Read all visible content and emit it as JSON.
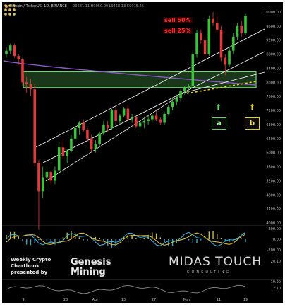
{
  "header": {
    "symbol": "Bitcoin / TetherUS",
    "interval": "1D",
    "exchange": "BINANCE",
    "ohlc_text": "O9681.11  H9950.00  L9468.13  C9915.26"
  },
  "colors": {
    "background": "#000000",
    "up_candle": "#39c439",
    "down_candle": "#e23a3a",
    "channel_lines": "#ffffff",
    "moving_average": "#8a57c6",
    "support_zone": "#6fd86f",
    "projection": "#e6d21a",
    "sell_label": "#ff2a2a"
  },
  "annotations": {
    "sell_1": "sell 50%",
    "sell_2": "sell 25%",
    "label_a": "a",
    "label_b": "b",
    "arrow_a_icon": "arrow-up-green",
    "arrow_b_icon": "arrow-up-yellow"
  },
  "branding": {
    "promo_line1": "Weekly Crypto",
    "promo_line2": "Chartbook",
    "promo_line3": "presented by",
    "genesis_line1": "Genesis",
    "genesis_line2": "Mining",
    "midas": "MIDAS TOUCH",
    "consulting": "CONSULTING"
  },
  "chart_data": {
    "type": "candlestick",
    "price_axis": {
      "range": [
        4000,
        10000
      ],
      "ticks": [
        "10000.00",
        "9600.00",
        "9200.00",
        "8800.00",
        "8400.00",
        "8000.00",
        "7600.00",
        "7200.00",
        "6800.00",
        "6400.00",
        "6000.00",
        "5600.00",
        "5200.00",
        "4800.00",
        "4400.00",
        "4000.00"
      ]
    },
    "oscillator_axis": {
      "ticks": [
        "200.00",
        "0.00",
        "-200.00"
      ]
    },
    "lower_axis": {
      "ticks": [
        "20.10",
        "19.90",
        "12.10"
      ]
    },
    "x_ticks": [
      "9",
      "23",
      "Apr",
      "13",
      "27",
      "May",
      "11",
      "19"
    ],
    "support_zone": {
      "low": 7850,
      "high": 8300
    },
    "candles": [
      [
        8800,
        9000,
        8700,
        8900
      ],
      [
        8900,
        9100,
        8800,
        9050
      ],
      [
        9050,
        9100,
        8700,
        8750
      ],
      [
        8750,
        8800,
        8500,
        8650
      ],
      [
        8650,
        8700,
        7900,
        8000
      ],
      [
        8000,
        8150,
        7700,
        7950
      ],
      [
        7950,
        8100,
        7600,
        7800
      ],
      [
        7800,
        7950,
        5600,
        5700
      ],
      [
        5700,
        5800,
        3800,
        4900
      ],
      [
        4900,
        5600,
        4700,
        5300
      ],
      [
        5300,
        5600,
        5000,
        5450
      ],
      [
        5450,
        5500,
        5100,
        5200
      ],
      [
        5200,
        5600,
        5100,
        5500
      ],
      [
        5500,
        6300,
        5400,
        6150
      ],
      [
        6150,
        6400,
        5800,
        5900
      ],
      [
        5900,
        6100,
        5700,
        6050
      ],
      [
        6050,
        6500,
        6000,
        6400
      ],
      [
        6400,
        6800,
        6300,
        6700
      ],
      [
        6700,
        6900,
        6500,
        6850
      ],
      [
        6850,
        6950,
        6600,
        6650
      ],
      [
        6650,
        6700,
        6300,
        6400
      ],
      [
        6400,
        6500,
        6000,
        6100
      ],
      [
        6100,
        6350,
        6000,
        6250
      ],
      [
        6250,
        6600,
        6200,
        6550
      ],
      [
        6550,
        6900,
        6500,
        6800
      ],
      [
        6800,
        6900,
        6600,
        6700
      ],
      [
        6700,
        7250,
        6650,
        7200
      ],
      [
        7200,
        7300,
        6800,
        6900
      ],
      [
        6900,
        7100,
        6800,
        7050
      ],
      [
        7050,
        7300,
        7000,
        7250
      ],
      [
        7250,
        7350,
        6900,
        6950
      ],
      [
        6950,
        7100,
        6850,
        7000
      ],
      [
        7000,
        7050,
        6700,
        6750
      ],
      [
        6750,
        6900,
        6600,
        6850
      ],
      [
        6850,
        7000,
        6700,
        6900
      ],
      [
        6900,
        7050,
        6800,
        6950
      ],
      [
        6950,
        7100,
        6850,
        7050
      ],
      [
        7050,
        7200,
        6900,
        6950
      ],
      [
        6950,
        7000,
        6800,
        6850
      ],
      [
        6850,
        7150,
        6800,
        7100
      ],
      [
        7100,
        7350,
        7050,
        7300
      ],
      [
        7300,
        7550,
        7200,
        7450
      ],
      [
        7450,
        7650,
        7350,
        7550
      ],
      [
        7550,
        7800,
        7450,
        7750
      ],
      [
        7750,
        7900,
        7650,
        7850
      ],
      [
        7850,
        7950,
        7700,
        7900
      ],
      [
        7900,
        8900,
        7850,
        8800
      ],
      [
        8800,
        9500,
        8700,
        9400
      ],
      [
        9400,
        9500,
        9100,
        9200
      ],
      [
        9200,
        9300,
        8700,
        8800
      ],
      [
        8800,
        9900,
        8750,
        9800
      ],
      [
        9800,
        10000,
        9600,
        9700
      ],
      [
        9700,
        9900,
        9400,
        9500
      ],
      [
        9500,
        9600,
        8600,
        8700
      ],
      [
        8700,
        8800,
        8200,
        8500
      ],
      [
        8500,
        9000,
        8450,
        8900
      ],
      [
        8900,
        9400,
        8800,
        9300
      ],
      [
        9300,
        9700,
        9200,
        9600
      ],
      [
        9600,
        9750,
        9300,
        9400
      ],
      [
        9400,
        9950,
        9350,
        9900
      ]
    ]
  }
}
